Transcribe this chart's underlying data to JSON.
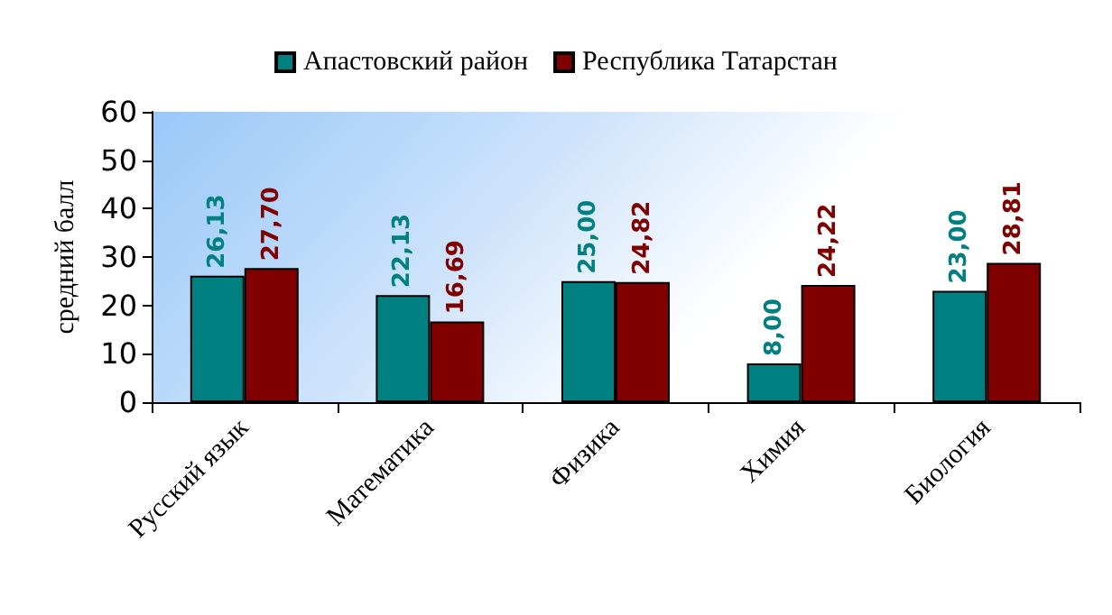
{
  "chart_data": {
    "type": "bar",
    "ylabel": "средний балл",
    "categories": [
      "Русский язык",
      "Математика",
      "Физика",
      "Химия",
      "Биология"
    ],
    "series": [
      {
        "name": "Апастовский район",
        "color": "#008080",
        "values": [
          26.13,
          22.13,
          25.0,
          8.0,
          23.0
        ],
        "value_labels": [
          "26,13",
          "22,13",
          "25,00",
          "8,00",
          "23,00"
        ]
      },
      {
        "name": "Республика Татарстан",
        "color": "#800000",
        "values": [
          27.7,
          16.69,
          24.82,
          24.22,
          28.81
        ],
        "value_labels": [
          "27,70",
          "16,69",
          "24,82",
          "24,22",
          "28,81"
        ]
      }
    ],
    "ylim": [
      0,
      60
    ],
    "yticks": [
      0,
      10,
      20,
      30,
      40,
      50,
      60
    ],
    "grid": false,
    "legend": "top"
  }
}
